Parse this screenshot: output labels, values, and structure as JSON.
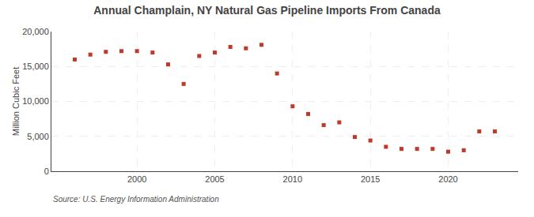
{
  "chart_data": {
    "type": "scatter",
    "title": "Annual Champlain, NY Natural Gas Pipeline Imports From Canada",
    "ylabel": "Million Cubic Feet",
    "annotations": [
      "Source: U.S. Energy Information Administration"
    ],
    "x": [
      1996,
      1997,
      1998,
      1999,
      2000,
      2001,
      2002,
      2003,
      2004,
      2005,
      2006,
      2007,
      2008,
      2009,
      2010,
      2011,
      2012,
      2013,
      2014,
      2015,
      2016,
      2017,
      2018,
      2019,
      2020,
      2021,
      2022,
      2023
    ],
    "values": [
      16000,
      16700,
      17100,
      17200,
      17200,
      17000,
      15300,
      12500,
      16500,
      17000,
      17800,
      17600,
      18100,
      14000,
      9300,
      8200,
      6600,
      7000,
      4900,
      4400,
      3500,
      3200,
      3200,
      3200,
      2800,
      3000,
      5700,
      5700
    ],
    "color": "#c0392b",
    "marker": "square",
    "xlim": [
      1994.5,
      2024.5
    ],
    "xticks": [
      2000,
      2005,
      2010,
      2015,
      2020
    ],
    "ylim": [
      0,
      20000
    ],
    "yticks": [
      0,
      {
        "value": 5000,
        "label": "5,000"
      },
      {
        "value": 10000,
        "label": "10,000"
      },
      {
        "value": 15000,
        "label": "15,000"
      },
      {
        "value": 20000,
        "label": "20,000"
      }
    ],
    "grid": true
  }
}
